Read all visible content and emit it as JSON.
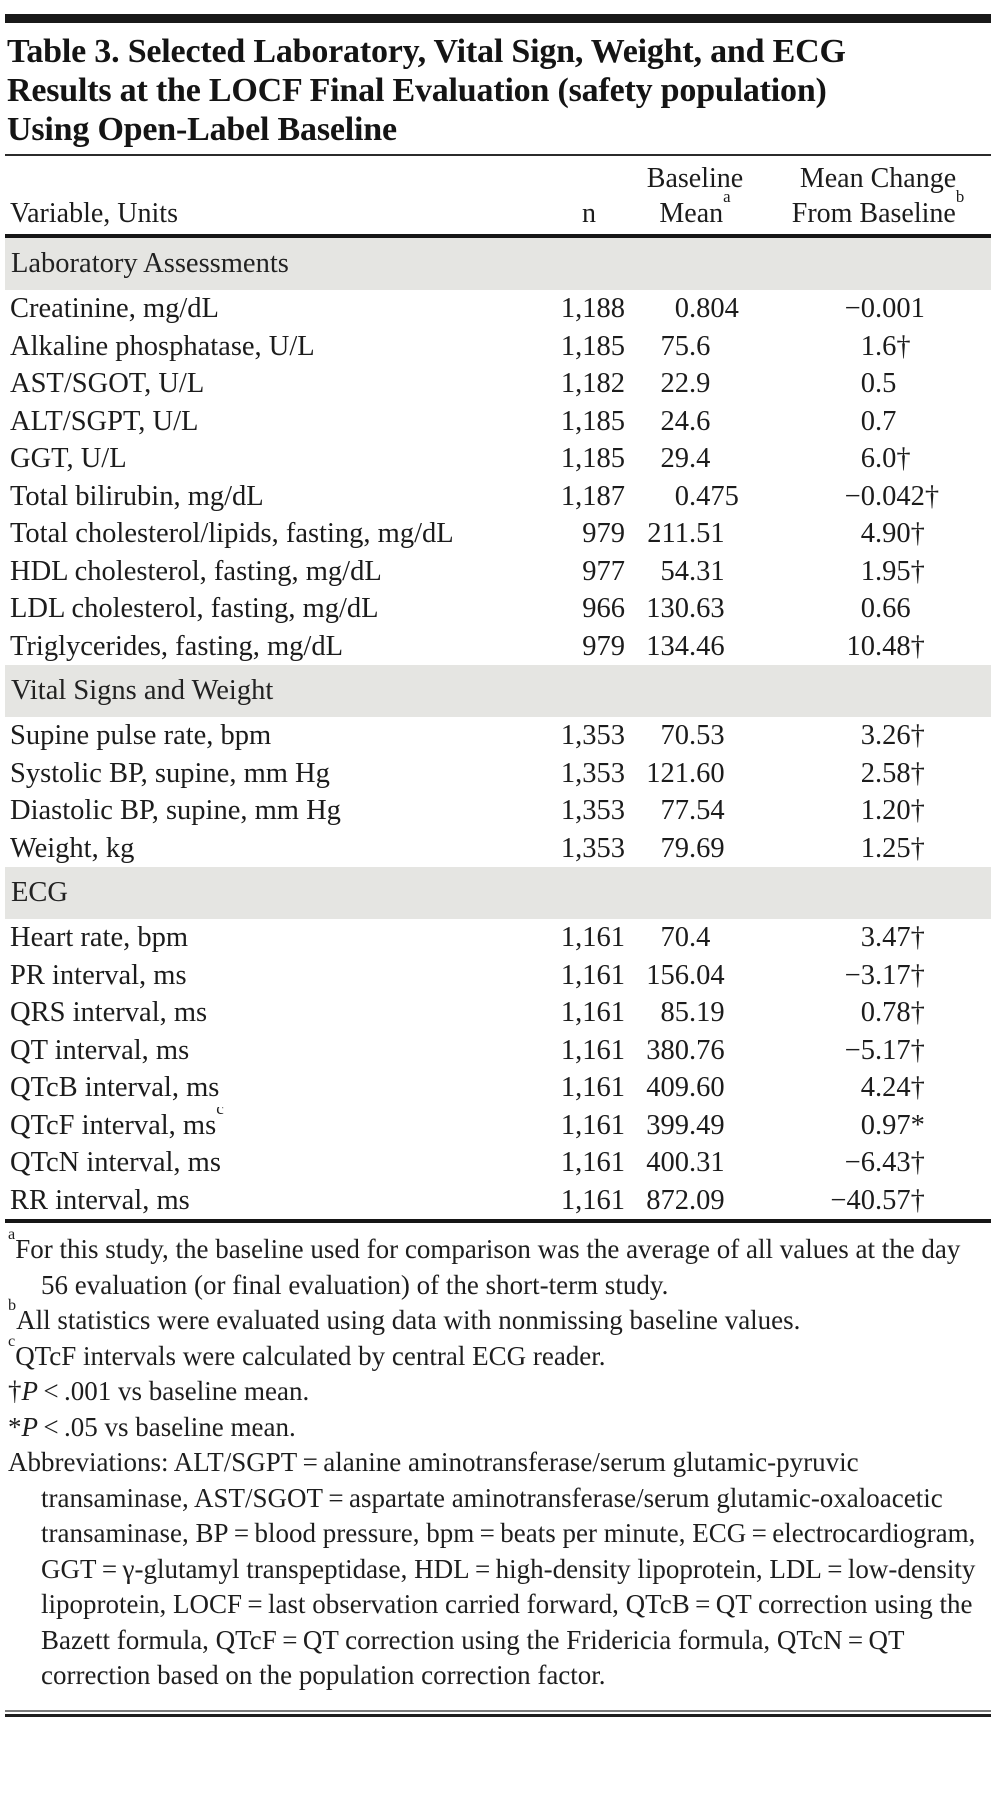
{
  "colors": {
    "section_band": "#e5e5e2",
    "rule": "#161616",
    "text": "#1c1c1c"
  },
  "table": {
    "title_lines": [
      "Table 3. Selected Laboratory, Vital Sign, Weight, and ECG",
      "Results at the LOCF Final Evaluation (safety population)",
      "Using Open-Label Baseline"
    ],
    "columns": {
      "variable": "Variable, Units",
      "n": "n",
      "baseline": [
        "Baseline",
        "Mean"
      ],
      "baseline_sup": "a",
      "change": [
        "Mean Change",
        "From Baseline"
      ],
      "change_sup": "b"
    },
    "sections": [
      {
        "header": "Laboratory Assessments",
        "rows": [
          {
            "label": "Creatinine, mg/dL",
            "n": "1,188",
            "baseline": "0.804",
            "change": "−0.001"
          },
          {
            "label": "Alkaline phosphatase, U/L",
            "n": "1,185",
            "baseline": "75.6",
            "change": "1.6†"
          },
          {
            "label": "AST/SGOT, U/L",
            "n": "1,182",
            "baseline": "22.9",
            "change": "0.5"
          },
          {
            "label": "ALT/SGPT, U/L",
            "n": "1,185",
            "baseline": "24.6",
            "change": "0.7"
          },
          {
            "label": "GGT, U/L",
            "n": "1,185",
            "baseline": "29.4",
            "change": "6.0†"
          },
          {
            "label": "Total bilirubin, mg/dL",
            "n": "1,187",
            "baseline": "0.475",
            "change": "−0.042†"
          },
          {
            "label": "Total cholesterol/lipids, fasting, mg/dL",
            "n": "979",
            "baseline": "211.51",
            "change": "4.90†"
          },
          {
            "label": "HDL cholesterol, fasting, mg/dL",
            "n": "977",
            "baseline": "54.31",
            "change": "1.95†"
          },
          {
            "label": "LDL cholesterol, fasting, mg/dL",
            "n": "966",
            "baseline": "130.63",
            "change": "0.66"
          },
          {
            "label": "Triglycerides, fasting, mg/dL",
            "n": "979",
            "baseline": "134.46",
            "change": "10.48†"
          }
        ]
      },
      {
        "header": "Vital Signs and Weight",
        "rows": [
          {
            "label": "Supine pulse rate, bpm",
            "n": "1,353",
            "baseline": "70.53",
            "change": "3.26†"
          },
          {
            "label": "Systolic BP, supine, mm Hg",
            "n": "1,353",
            "baseline": "121.60",
            "change": "2.58†"
          },
          {
            "label": "Diastolic BP, supine, mm Hg",
            "n": "1,353",
            "baseline": "77.54",
            "change": "1.20†"
          },
          {
            "label": "Weight, kg",
            "n": "1,353",
            "baseline": "79.69",
            "change": "1.25†"
          }
        ]
      },
      {
        "header": "ECG",
        "rows": [
          {
            "label": "Heart rate, bpm",
            "n": "1,161",
            "baseline": "70.4",
            "change": "3.47†"
          },
          {
            "label": "PR interval, ms",
            "n": "1,161",
            "baseline": "156.04",
            "change": "−3.17†"
          },
          {
            "label": "QRS interval, ms",
            "n": "1,161",
            "baseline": "85.19",
            "change": "0.78†"
          },
          {
            "label": "QT interval, ms",
            "n": "1,161",
            "baseline": "380.76",
            "change": "−5.17†"
          },
          {
            "label": "QTcB interval, ms",
            "n": "1,161",
            "baseline": "409.60",
            "change": "4.24†"
          },
          {
            "label": "QTcF interval, ms",
            "label_sup": "c",
            "n": "1,161",
            "baseline": "399.49",
            "change": "0.97*"
          },
          {
            "label": "QTcN interval, ms",
            "n": "1,161",
            "baseline": "400.31",
            "change": "−6.43†"
          },
          {
            "label": "RR interval, ms",
            "n": "1,161",
            "baseline": "872.09",
            "change": "−40.57†"
          }
        ]
      }
    ]
  },
  "footnotes": [
    {
      "sup": "a",
      "text": "For this study, the baseline used for comparison was the average of all values at the day 56 evaluation (or final evaluation) of the short-term study."
    },
    {
      "sup": "b",
      "text": "All statistics were evaluated using data with nonmissing baseline values."
    },
    {
      "sup": "c",
      "text": "QTcF intervals were calculated by central ECG reader."
    },
    {
      "marker": "†",
      "italic": "P",
      "text": " < .001 vs baseline mean."
    },
    {
      "marker": "*",
      "italic": "P",
      "text": " < .05 vs baseline mean."
    },
    {
      "text": "Abbreviations: ALT/SGPT = alanine aminotransferase/serum glutamic-pyruvic transaminase, AST/SGOT = aspartate aminotransferase/serum glutamic-oxaloacetic transaminase, BP = blood pressure, bpm = beats per minute, ECG = electrocardiogram, GGT = γ-glutamyl transpeptidase, HDL = high-density lipoprotein, LDL = low-density lipoprotein, LOCF = last observation carried forward, QTcB = QT correction using the Bazett formula, QTcF = QT correction using the Fridericia formula, QTcN = QT correction based on the population correction factor."
    }
  ]
}
